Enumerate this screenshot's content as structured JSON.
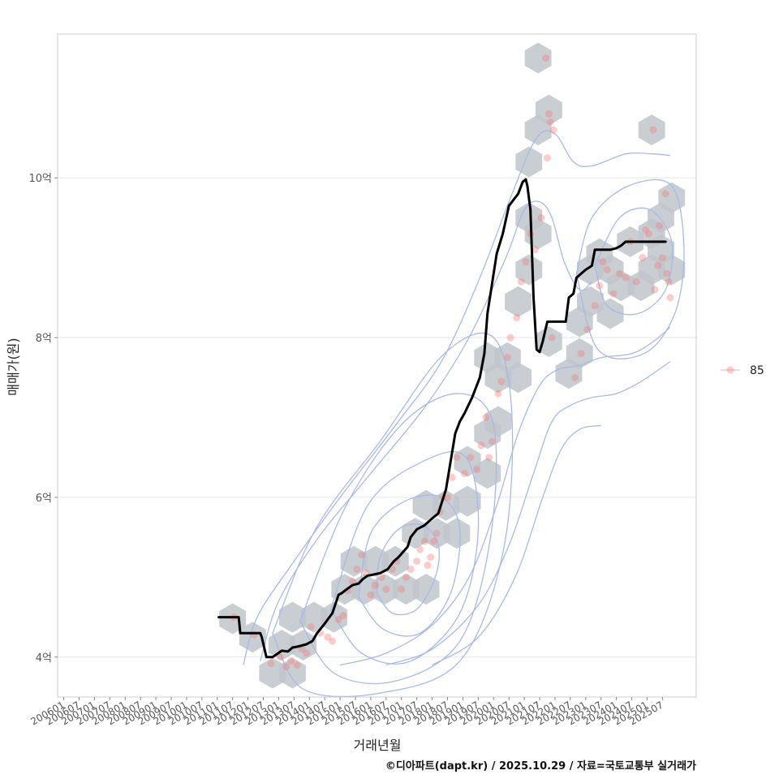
{
  "chart_data": {
    "type": "line",
    "xlabel": "거래년월",
    "ylabel": "매매가(원)",
    "caption": "©디아파트(dapt.kr) / 2025.10.29 / 자료=국토교통부 실거래가",
    "legend": {
      "label": "85",
      "position": "right"
    },
    "grid": true,
    "ylim": [
      3.5,
      11.8
    ],
    "xlim": [
      2005.8,
      2026.6
    ],
    "y_ticks": [
      {
        "value": 4,
        "label": "4억"
      },
      {
        "value": 6,
        "label": "6억"
      },
      {
        "value": 8,
        "label": "8억"
      },
      {
        "value": 10,
        "label": "10억"
      }
    ],
    "x_ticks": [
      {
        "value": 2006.0,
        "label": "200601"
      },
      {
        "value": 2006.5,
        "label": "200607"
      },
      {
        "value": 2007.0,
        "label": "200701"
      },
      {
        "value": 2007.5,
        "label": "200707"
      },
      {
        "value": 2008.0,
        "label": "200801"
      },
      {
        "value": 2008.5,
        "label": "200807"
      },
      {
        "value": 2009.0,
        "label": "200901"
      },
      {
        "value": 2009.5,
        "label": "200907"
      },
      {
        "value": 2010.0,
        "label": "201001"
      },
      {
        "value": 2010.5,
        "label": "201007"
      },
      {
        "value": 2011.0,
        "label": "201101"
      },
      {
        "value": 2011.5,
        "label": "201107"
      },
      {
        "value": 2012.0,
        "label": "201201"
      },
      {
        "value": 2012.5,
        "label": "201207"
      },
      {
        "value": 2013.0,
        "label": "201301"
      },
      {
        "value": 2013.5,
        "label": "201307"
      },
      {
        "value": 2014.0,
        "label": "201401"
      },
      {
        "value": 2014.5,
        "label": "201407"
      },
      {
        "value": 2015.0,
        "label": "201501"
      },
      {
        "value": 2015.5,
        "label": "201507"
      },
      {
        "value": 2016.0,
        "label": "201601"
      },
      {
        "value": 2016.5,
        "label": "201607"
      },
      {
        "value": 2017.0,
        "label": "201701"
      },
      {
        "value": 2017.5,
        "label": "201707"
      },
      {
        "value": 2018.0,
        "label": "201801"
      },
      {
        "value": 2018.5,
        "label": "201807"
      },
      {
        "value": 2019.0,
        "label": "201901"
      },
      {
        "value": 2019.5,
        "label": "201907"
      },
      {
        "value": 2020.0,
        "label": "202001"
      },
      {
        "value": 2020.5,
        "label": "202007"
      },
      {
        "value": 2021.0,
        "label": "202101"
      },
      {
        "value": 2021.5,
        "label": "202107"
      },
      {
        "value": 2022.0,
        "label": "202201"
      },
      {
        "value": 2022.5,
        "label": "202207"
      },
      {
        "value": 2023.0,
        "label": "202301"
      },
      {
        "value": 2023.5,
        "label": "202307"
      },
      {
        "value": 2024.0,
        "label": "202401"
      },
      {
        "value": 2024.5,
        "label": "202407"
      },
      {
        "value": 2025.0,
        "label": "202501"
      },
      {
        "value": 2025.5,
        "label": "202507"
      }
    ],
    "colors": {
      "line": "#000000",
      "point": "#f28080",
      "hex": "#bfc5cb",
      "contour": "#a9b8ea",
      "grid": "#e5e5e5",
      "panel_border": "#cccccc"
    },
    "series": [
      {
        "name": "moving-average",
        "x": [
          2011.05,
          2011.7,
          2011.75,
          2012.4,
          2012.45,
          2012.6,
          2012.8,
          2013.1,
          2013.3,
          2013.45,
          2013.6,
          2013.9,
          2014.1,
          2014.25,
          2014.5,
          2014.75,
          2014.95,
          2015.05,
          2015.15,
          2015.4,
          2015.6,
          2015.75,
          2015.9,
          2016.05,
          2016.3,
          2016.55,
          2016.75,
          2016.9,
          2017.2,
          2017.3,
          2017.5,
          2017.75,
          2017.95,
          2018.2,
          2018.45,
          2018.6,
          2018.75,
          2018.9,
          2019.05,
          2019.3,
          2019.55,
          2019.7,
          2019.8,
          2020.1,
          2020.3,
          2020.5,
          2020.8,
          2020.95,
          2021.05,
          2021.1,
          2021.2,
          2021.3,
          2021.4,
          2021.5,
          2021.6,
          2021.75,
          2021.95,
          2022.15,
          2022.35,
          2022.45,
          2022.6,
          2022.7,
          2022.85,
          2023.0,
          2023.2,
          2023.3,
          2023.55,
          2023.8,
          2024.0,
          2024.15,
          2024.3,
          2024.5,
          2024.7,
          2024.9,
          2025.1,
          2025.4,
          2025.6
        ],
        "y": [
          4.5,
          4.5,
          4.3,
          4.3,
          4.25,
          4.0,
          4.0,
          4.08,
          4.07,
          4.12,
          4.13,
          4.16,
          4.2,
          4.3,
          4.42,
          4.55,
          4.78,
          4.8,
          4.83,
          4.9,
          4.92,
          4.98,
          5.02,
          5.03,
          5.05,
          5.1,
          5.2,
          5.25,
          5.38,
          5.5,
          5.6,
          5.65,
          5.72,
          5.8,
          6.1,
          6.45,
          6.8,
          6.95,
          7.05,
          7.25,
          7.5,
          7.8,
          8.3,
          9.05,
          9.3,
          9.65,
          9.8,
          9.95,
          9.98,
          9.9,
          9.6,
          8.5,
          7.85,
          7.82,
          7.95,
          8.2,
          8.2,
          8.2,
          8.2,
          8.5,
          8.55,
          8.75,
          8.8,
          8.85,
          8.9,
          9.1,
          9.1,
          9.1,
          9.12,
          9.15,
          9.2,
          9.2,
          9.2,
          9.2,
          9.2,
          9.2,
          9.2
        ]
      }
    ],
    "hexbins": [
      [
        2011.5,
        4.48
      ],
      [
        2012.15,
        4.25
      ],
      [
        2012.8,
        3.8
      ],
      [
        2013.45,
        3.8
      ],
      [
        2013.1,
        4.15
      ],
      [
        2013.8,
        4.15
      ],
      [
        2013.45,
        4.5
      ],
      [
        2014.15,
        4.5
      ],
      [
        2014.8,
        4.5
      ],
      [
        2015.15,
        4.85
      ],
      [
        2015.8,
        4.85
      ],
      [
        2015.45,
        5.2
      ],
      [
        2016.15,
        5.2
      ],
      [
        2016.8,
        5.2
      ],
      [
        2016.45,
        4.85
      ],
      [
        2017.15,
        4.85
      ],
      [
        2017.8,
        4.85
      ],
      [
        2017.45,
        5.55
      ],
      [
        2018.15,
        5.55
      ],
      [
        2018.8,
        5.55
      ],
      [
        2017.8,
        5.9
      ],
      [
        2018.45,
        5.9
      ],
      [
        2019.15,
        5.95
      ],
      [
        2019.15,
        6.45
      ],
      [
        2019.8,
        6.3
      ],
      [
        2019.8,
        6.8
      ],
      [
        2020.15,
        6.95
      ],
      [
        2020.15,
        7.5
      ],
      [
        2019.8,
        7.75
      ],
      [
        2020.45,
        7.75
      ],
      [
        2020.8,
        7.5
      ],
      [
        2020.8,
        8.45
      ],
      [
        2021.15,
        8.85
      ],
      [
        2021.15,
        9.5
      ],
      [
        2021.45,
        9.3
      ],
      [
        2021.15,
        10.2
      ],
      [
        2021.45,
        10.6
      ],
      [
        2021.8,
        10.85
      ],
      [
        2021.45,
        11.5
      ],
      [
        2021.8,
        7.95
      ],
      [
        2022.45,
        7.55
      ],
      [
        2022.8,
        7.8
      ],
      [
        2022.8,
        8.2
      ],
      [
        2023.15,
        8.45
      ],
      [
        2023.15,
        8.85
      ],
      [
        2023.45,
        9.05
      ],
      [
        2023.8,
        8.85
      ],
      [
        2023.8,
        8.3
      ],
      [
        2024.15,
        8.65
      ],
      [
        2024.45,
        9.2
      ],
      [
        2024.8,
        8.65
      ],
      [
        2025.15,
        8.85
      ],
      [
        2025.45,
        9.1
      ],
      [
        2025.8,
        8.85
      ],
      [
        2025.45,
        9.5
      ],
      [
        2025.8,
        9.75
      ],
      [
        2025.15,
        10.6
      ],
      [
        2025.15,
        9.3
      ]
    ],
    "points": [
      [
        2011.55,
        4.5
      ],
      [
        2012.2,
        4.28
      ],
      [
        2012.75,
        3.92
      ],
      [
        2013.05,
        4.0
      ],
      [
        2013.25,
        3.88
      ],
      [
        2013.4,
        3.95
      ],
      [
        2013.6,
        3.9
      ],
      [
        2013.75,
        4.1
      ],
      [
        2013.9,
        4.05
      ],
      [
        2014.05,
        4.38
      ],
      [
        2014.35,
        4.3
      ],
      [
        2014.6,
        4.25
      ],
      [
        2014.75,
        4.2
      ],
      [
        2014.95,
        4.47
      ],
      [
        2015.1,
        4.52
      ],
      [
        2015.25,
        4.83
      ],
      [
        2015.4,
        4.95
      ],
      [
        2015.55,
        5.1
      ],
      [
        2015.7,
        5.28
      ],
      [
        2015.85,
        5.05
      ],
      [
        2016.0,
        4.78
      ],
      [
        2016.15,
        4.9
      ],
      [
        2016.35,
        5.0
      ],
      [
        2016.5,
        4.85
      ],
      [
        2016.7,
        5.1
      ],
      [
        2016.85,
        5.2
      ],
      [
        2017.0,
        4.85
      ],
      [
        2017.15,
        5.0
      ],
      [
        2017.3,
        5.1
      ],
      [
        2017.5,
        5.2
      ],
      [
        2017.6,
        5.35
      ],
      [
        2017.75,
        5.45
      ],
      [
        2017.85,
        5.15
      ],
      [
        2017.95,
        5.25
      ],
      [
        2018.05,
        5.45
      ],
      [
        2018.15,
        5.55
      ],
      [
        2018.25,
        5.82
      ],
      [
        2018.35,
        6.0
      ],
      [
        2018.5,
        6.0
      ],
      [
        2018.65,
        6.25
      ],
      [
        2018.8,
        6.5
      ],
      [
        2019.05,
        6.3
      ],
      [
        2019.25,
        6.5
      ],
      [
        2019.45,
        6.35
      ],
      [
        2019.6,
        6.65
      ],
      [
        2019.75,
        7.0
      ],
      [
        2019.85,
        6.5
      ],
      [
        2019.95,
        6.7
      ],
      [
        2020.15,
        7.3
      ],
      [
        2020.25,
        7.45
      ],
      [
        2020.45,
        7.75
      ],
      [
        2020.55,
        8.0
      ],
      [
        2020.75,
        8.25
      ],
      [
        2020.9,
        8.7
      ],
      [
        2021.05,
        8.95
      ],
      [
        2021.2,
        9.3
      ],
      [
        2021.35,
        9.1
      ],
      [
        2021.55,
        9.5
      ],
      [
        2021.75,
        10.25
      ],
      [
        2021.85,
        10.7
      ],
      [
        2021.95,
        10.6
      ],
      [
        2021.8,
        10.8
      ],
      [
        2021.7,
        11.5
      ],
      [
        2021.9,
        8.0
      ],
      [
        2022.65,
        7.5
      ],
      [
        2022.85,
        7.8
      ],
      [
        2023.05,
        8.1
      ],
      [
        2023.3,
        8.4
      ],
      [
        2023.45,
        8.65
      ],
      [
        2023.55,
        8.95
      ],
      [
        2023.7,
        8.85
      ],
      [
        2023.9,
        8.55
      ],
      [
        2024.1,
        8.8
      ],
      [
        2024.3,
        8.75
      ],
      [
        2024.45,
        9.2
      ],
      [
        2024.65,
        8.7
      ],
      [
        2024.85,
        9.0
      ],
      [
        2025.05,
        9.3
      ],
      [
        2025.25,
        8.6
      ],
      [
        2025.4,
        9.4
      ],
      [
        2025.5,
        9.0
      ],
      [
        2025.6,
        9.8
      ],
      [
        2025.7,
        8.7
      ],
      [
        2025.75,
        8.5
      ],
      [
        2025.65,
        8.8
      ],
      [
        2025.35,
        8.9
      ],
      [
        2025.2,
        10.6
      ],
      [
        2024.95,
        9.35
      ]
    ],
    "contours": [
      [
        [
          2016.2,
          4.8
        ],
        [
          2016.7,
          4.55
        ],
        [
          2017.5,
          4.6
        ],
        [
          2018.1,
          5.0
        ],
        [
          2018.2,
          5.4
        ],
        [
          2017.7,
          5.65
        ],
        [
          2016.9,
          5.6
        ],
        [
          2016.3,
          5.25
        ],
        [
          2016.2,
          4.8
        ]
      ],
      [
        [
          2015.6,
          4.75
        ],
        [
          2016.4,
          4.35
        ],
        [
          2017.6,
          4.3
        ],
        [
          2018.6,
          4.8
        ],
        [
          2018.9,
          5.6
        ],
        [
          2018.3,
          6.0
        ],
        [
          2017.1,
          5.95
        ],
        [
          2016.0,
          5.55
        ],
        [
          2015.6,
          4.75
        ]
      ],
      [
        [
          2014.7,
          4.6
        ],
        [
          2015.7,
          4.05
        ],
        [
          2017.3,
          3.95
        ],
        [
          2018.9,
          4.55
        ],
        [
          2019.5,
          5.6
        ],
        [
          2019.1,
          6.5
        ],
        [
          2017.7,
          6.45
        ],
        [
          2015.9,
          5.9
        ],
        [
          2014.7,
          4.6
        ]
      ],
      [
        [
          2013.7,
          4.45
        ],
        [
          2014.8,
          3.8
        ],
        [
          2016.8,
          3.7
        ],
        [
          2018.9,
          4.2
        ],
        [
          2019.9,
          5.5
        ],
        [
          2020.0,
          6.9
        ],
        [
          2018.9,
          7.3
        ],
        [
          2017.1,
          6.95
        ],
        [
          2015.2,
          5.9
        ],
        [
          2013.7,
          4.45
        ]
      ],
      [
        [
          2012.8,
          4.3
        ],
        [
          2013.8,
          3.6
        ],
        [
          2016.3,
          3.55
        ],
        [
          2018.9,
          3.95
        ],
        [
          2020.3,
          5.3
        ],
        [
          2020.6,
          7.0
        ],
        [
          2020.0,
          8.0
        ],
        [
          2018.4,
          7.8
        ],
        [
          2016.3,
          6.7
        ],
        [
          2014.2,
          5.6
        ],
        [
          2012.8,
          4.3
        ]
      ],
      [
        [
          2023.3,
          8.9
        ],
        [
          2023.7,
          8.4
        ],
        [
          2024.7,
          8.3
        ],
        [
          2025.6,
          8.6
        ],
        [
          2025.8,
          9.2
        ],
        [
          2025.1,
          9.6
        ],
        [
          2024.1,
          9.5
        ],
        [
          2023.3,
          8.9
        ]
      ],
      [
        [
          2022.7,
          8.8
        ],
        [
          2023.4,
          7.85
        ],
        [
          2024.9,
          7.8
        ],
        [
          2025.9,
          8.3
        ],
        [
          2026.2,
          9.1
        ],
        [
          2025.8,
          9.9
        ],
        [
          2024.4,
          9.9
        ],
        [
          2023.2,
          9.5
        ],
        [
          2022.7,
          8.8
        ]
      ]
    ],
    "contour_lines": [
      [
        [
          2011.85,
          3.9
        ],
        [
          2012.3,
          4.5
        ],
        [
          2013.5,
          5.2
        ],
        [
          2015.0,
          6.0
        ],
        [
          2016.8,
          6.9
        ],
        [
          2018.3,
          7.7
        ],
        [
          2019.5,
          8.7
        ],
        [
          2020.6,
          9.8
        ],
        [
          2021.4,
          10.5
        ],
        [
          2022.0,
          10.55
        ],
        [
          2022.6,
          10.2
        ],
        [
          2023.2,
          10.15
        ],
        [
          2024.3,
          10.3
        ],
        [
          2025.2,
          10.3
        ],
        [
          2025.75,
          10.28
        ]
      ],
      [
        [
          2012.4,
          3.95
        ],
        [
          2013.0,
          4.7
        ],
        [
          2014.3,
          5.5
        ],
        [
          2016.0,
          6.3
        ],
        [
          2017.8,
          7.15
        ],
        [
          2019.2,
          8.0
        ],
        [
          2020.4,
          9.0
        ],
        [
          2021.0,
          9.6
        ],
        [
          2021.5,
          9.7
        ],
        [
          2021.9,
          9.5
        ],
        [
          2022.3,
          8.95
        ],
        [
          2022.8,
          8.6
        ],
        [
          2023.2,
          8.7
        ]
      ],
      [
        [
          2015.0,
          3.9
        ],
        [
          2016.5,
          4.05
        ],
        [
          2018.0,
          4.4
        ],
        [
          2019.2,
          5.0
        ],
        [
          2020.1,
          5.9
        ],
        [
          2020.8,
          6.8
        ],
        [
          2021.5,
          7.4
        ],
        [
          2022.1,
          7.6
        ],
        [
          2022.8,
          7.65
        ],
        [
          2023.5,
          7.75
        ],
        [
          2024.5,
          7.8
        ],
        [
          2025.2,
          7.95
        ],
        [
          2025.75,
          8.13
        ]
      ],
      [
        [
          2016.5,
          3.9
        ],
        [
          2018.0,
          4.1
        ],
        [
          2019.5,
          4.65
        ],
        [
          2020.5,
          5.4
        ],
        [
          2021.3,
          6.3
        ],
        [
          2021.9,
          6.95
        ],
        [
          2022.5,
          7.15
        ],
        [
          2023.2,
          7.25
        ],
        [
          2024.0,
          7.3
        ],
        [
          2024.8,
          7.45
        ],
        [
          2025.75,
          7.7
        ]
      ],
      [
        [
          2018.0,
          3.9
        ],
        [
          2019.5,
          4.25
        ],
        [
          2020.7,
          5.0
        ],
        [
          2021.6,
          6.0
        ],
        [
          2022.2,
          6.6
        ],
        [
          2022.8,
          6.85
        ],
        [
          2023.5,
          6.9
        ]
      ]
    ]
  }
}
